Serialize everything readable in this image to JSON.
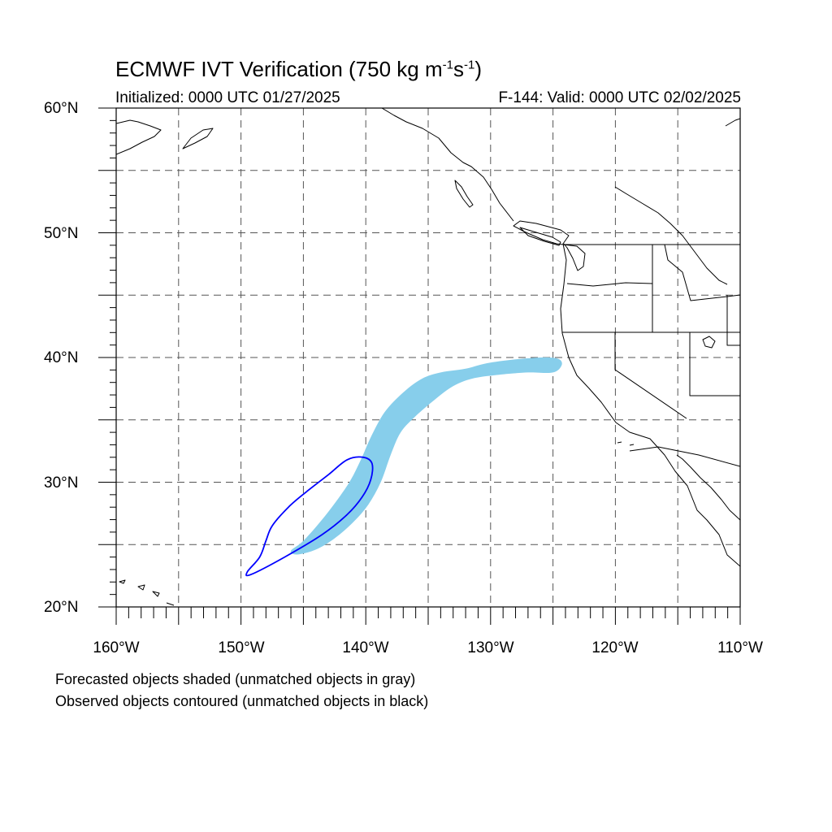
{
  "title": {
    "main": "ECMWF IVT Verification (750 kg m",
    "exp1": "-1",
    "mid": "s",
    "exp2": "-1",
    "end": ")"
  },
  "subtitle": {
    "left": "Initialized: 0000 UTC 01/27/2025",
    "right": "F-144: Valid: 0000 UTC 02/02/2025"
  },
  "lat_labels": [
    "60°N",
    "50°N",
    "40°N",
    "30°N",
    "20°N"
  ],
  "lon_labels": [
    "160°W",
    "150°W",
    "140°W",
    "130°W",
    "120°W",
    "110°W"
  ],
  "captions": [
    "Forecasted objects shaded (unmatched objects in gray)",
    "Observed objects contoured (unmatched objects in black)"
  ],
  "map": {
    "extent": {
      "lon": [
        -160,
        -110
      ],
      "lat": [
        20,
        60
      ]
    },
    "colors": {
      "forecast_fill": "#87ceeb",
      "observed_contour": "#0000ff",
      "coastline": "#000000",
      "grid": "#555555"
    },
    "forecast_object": [
      [
        -145.5,
        24.2
      ],
      [
        -144.0,
        24.6
      ],
      [
        -142.5,
        25.5
      ],
      [
        -141.0,
        26.8
      ],
      [
        -139.8,
        28.2
      ],
      [
        -138.8,
        30.0
      ],
      [
        -138.0,
        32.2
      ],
      [
        -137.2,
        34.0
      ],
      [
        -136.0,
        35.3
      ],
      [
        -134.5,
        36.6
      ],
      [
        -133.0,
        37.7
      ],
      [
        -131.5,
        38.3
      ],
      [
        -129.5,
        38.6
      ],
      [
        -127.0,
        38.8
      ],
      [
        -125.0,
        38.8
      ],
      [
        -124.3,
        39.4
      ],
      [
        -124.6,
        39.9
      ],
      [
        -126.0,
        40.0
      ],
      [
        -128.5,
        39.8
      ],
      [
        -130.5,
        39.5
      ],
      [
        -132.0,
        39.1
      ],
      [
        -134.0,
        38.8
      ],
      [
        -135.5,
        38.3
      ],
      [
        -137.0,
        37.2
      ],
      [
        -138.5,
        35.6
      ],
      [
        -139.6,
        33.6
      ],
      [
        -140.4,
        31.8
      ],
      [
        -141.2,
        30.2
      ],
      [
        -142.2,
        28.7
      ],
      [
        -143.5,
        27.0
      ],
      [
        -145.0,
        25.3
      ],
      [
        -146.0,
        24.5
      ]
    ],
    "observed_object": [
      [
        -149.2,
        22.6
      ],
      [
        -146.5,
        24.0
      ],
      [
        -143.5,
        25.8
      ],
      [
        -141.5,
        27.4
      ],
      [
        -140.3,
        28.8
      ],
      [
        -139.6,
        30.2
      ],
      [
        -139.5,
        31.5
      ],
      [
        -140.2,
        32.0
      ],
      [
        -141.5,
        31.8
      ],
      [
        -143.0,
        30.6
      ],
      [
        -144.8,
        29.2
      ],
      [
        -146.2,
        28.0
      ],
      [
        -147.5,
        26.5
      ],
      [
        -148.0,
        25.3
      ],
      [
        -148.5,
        24.0
      ],
      [
        -149.5,
        22.8
      ]
    ]
  }
}
